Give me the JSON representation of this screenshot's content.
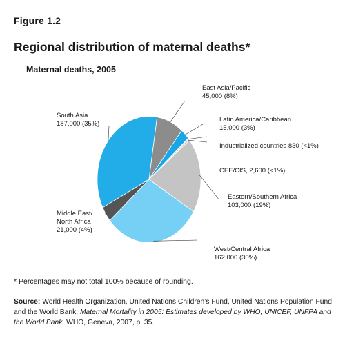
{
  "figure": {
    "label": "Figure 1.2",
    "title": "Regional distribution of maternal deaths*",
    "subtitle": "Maternal deaths, 2005"
  },
  "chart_data": {
    "type": "pie",
    "title": "Maternal deaths, 2005",
    "slices": [
      {
        "name": "South Asia",
        "value": 187000,
        "label": "187,000 (35%)",
        "color": "#22ade8"
      },
      {
        "name": "East Asia/Pacific",
        "value": 45000,
        "label": "45,000 (8%)",
        "color": "#8c8c8c"
      },
      {
        "name": "Latin America/Caribbean",
        "value": 15000,
        "label": "15,000 (3%)",
        "color": "#18a6e9"
      },
      {
        "name": "Industrialized countries",
        "value": 830,
        "label": "830 (<1%)",
        "color": "#e0e0e0"
      },
      {
        "name": "CEE/CIS,",
        "value": 2600,
        "label": "2,600 (<1%)",
        "color": "#c8c8c8"
      },
      {
        "name": "Eastern/Southern Africa",
        "value": 103000,
        "label": "103,000 (19%)",
        "color": "#c4c4c4"
      },
      {
        "name": "West/Central Africa",
        "value": 162000,
        "label": "162,000 (30%)",
        "color": "#76cff5"
      },
      {
        "name": "Middle East/",
        "name2": "North Africa",
        "value": 21000,
        "label": "21,000 (4%)",
        "color": "#555555"
      }
    ]
  },
  "footnote": "* Percentages may not total 100% because of rounding.",
  "source": {
    "label": "Source:",
    "text_1": "World Health Organization, United Nations Children’s Fund, United Nations Population Fund and the World Bank,",
    "title_italic": "Maternal Mortality in 2005: Estimates developed by WHO, UNICEF, UNFPA and the World Bank,",
    "text_2": "WHO, Geneva, 2007, p. 35."
  }
}
